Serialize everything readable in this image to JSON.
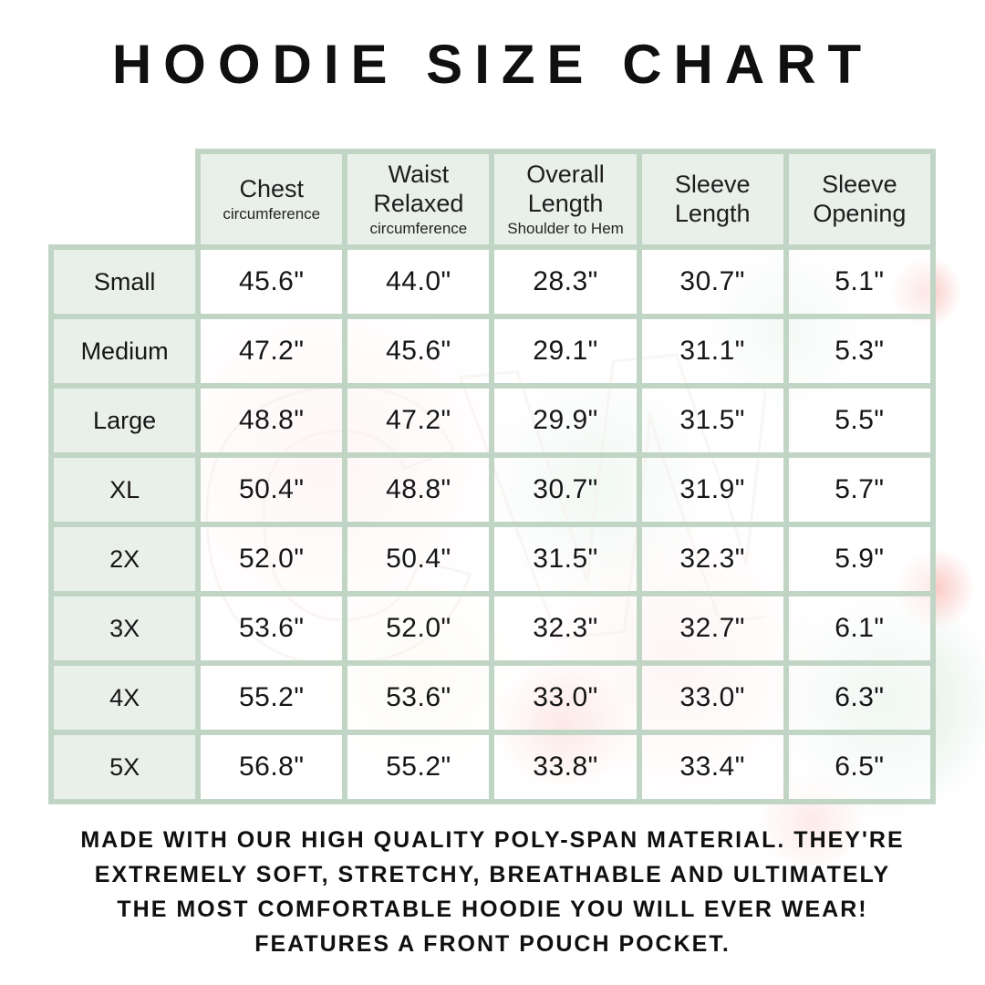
{
  "title": "HOODIE SIZE CHART",
  "colors": {
    "table_border": "#c1d5c5",
    "cell_green": "#e7efe8",
    "text": "#161616",
    "watermark_pink": "#f9d6d6",
    "watermark_green": "#c1decb"
  },
  "watermark": {
    "letters": "CW"
  },
  "chart_data": {
    "type": "table",
    "title": "HOODIE SIZE CHART",
    "columns": [
      {
        "label": "Chest",
        "sublabel": "circumference"
      },
      {
        "label": "Waist Relaxed",
        "sublabel": "circumference"
      },
      {
        "label": "Overall Length",
        "sublabel": "Shoulder to Hem"
      },
      {
        "label": "Sleeve Length",
        "sublabel": ""
      },
      {
        "label": "Sleeve Opening",
        "sublabel": ""
      }
    ],
    "rows": [
      {
        "size": "Small",
        "values": [
          "45.6\"",
          "44.0\"",
          "28.3\"",
          "30.7\"",
          "5.1\""
        ]
      },
      {
        "size": "Medium",
        "values": [
          "47.2\"",
          "45.6\"",
          "29.1\"",
          "31.1\"",
          "5.3\""
        ]
      },
      {
        "size": "Large",
        "values": [
          "48.8\"",
          "47.2\"",
          "29.9\"",
          "31.5\"",
          "5.5\""
        ]
      },
      {
        "size": "XL",
        "values": [
          "50.4\"",
          "48.8\"",
          "30.7\"",
          "31.9\"",
          "5.7\""
        ]
      },
      {
        "size": "2X",
        "values": [
          "52.0\"",
          "50.4\"",
          "31.5\"",
          "32.3\"",
          "5.9\""
        ]
      },
      {
        "size": "3X",
        "values": [
          "53.6\"",
          "52.0\"",
          "32.3\"",
          "32.7\"",
          "6.1\""
        ]
      },
      {
        "size": "4X",
        "values": [
          "55.2\"",
          "53.6\"",
          "33.0\"",
          "33.0\"",
          "6.3\""
        ]
      },
      {
        "size": "5X",
        "values": [
          "56.8\"",
          "55.2\"",
          "33.8\"",
          "33.4\"",
          "6.5\""
        ]
      }
    ],
    "notes": [
      "MADE WITH OUR HIGH QUALITY POLY-SPAN MATERIAL. THEY'RE",
      "EXTREMELY SOFT, STRETCHY, BREATHABLE AND ULTIMATELY",
      "THE MOST COMFORTABLE HOODIE YOU WILL EVER WEAR!",
      "FEATURES A FRONT POUCH POCKET."
    ]
  }
}
